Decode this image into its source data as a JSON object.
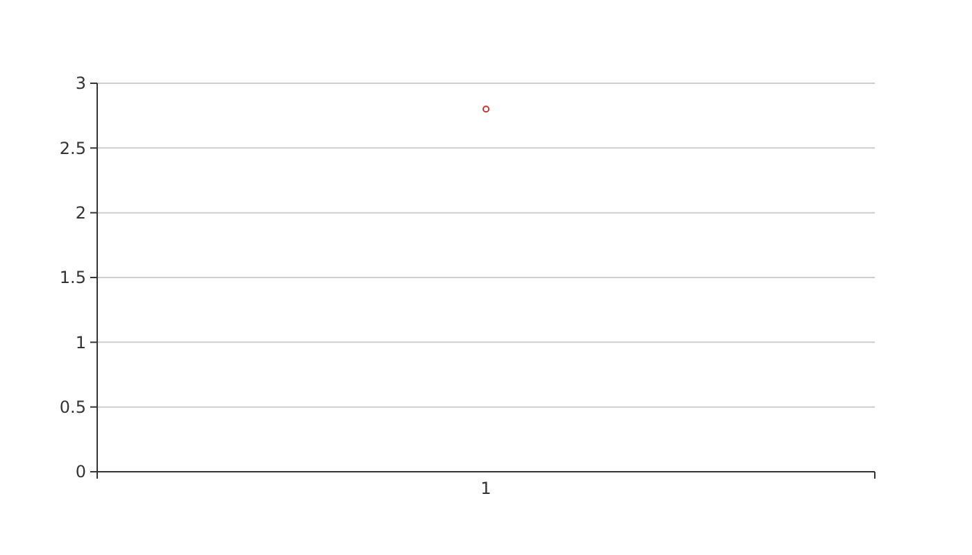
{
  "chart_data": {
    "type": "line",
    "categories": [
      "1"
    ],
    "series": [
      {
        "color": "#c23531",
        "values": [
          2.8
        ]
      }
    ],
    "ylim": [
      0,
      3
    ],
    "yticks": [
      0,
      0.5,
      1,
      1.5,
      2,
      2.5,
      3
    ],
    "grid": "y",
    "marker": "circle"
  }
}
